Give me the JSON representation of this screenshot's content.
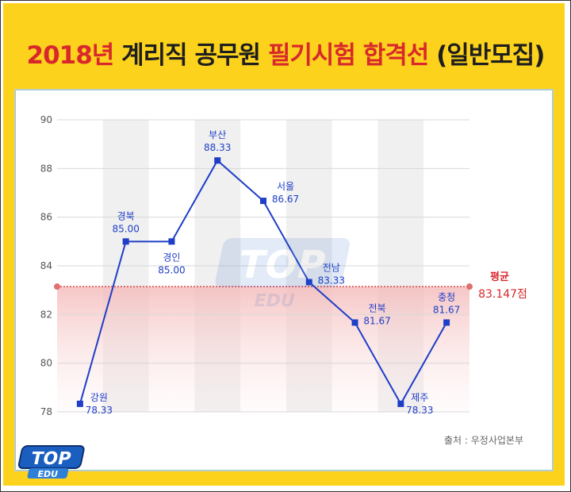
{
  "title": {
    "year": "2018년",
    "mid": "계리직 공무원",
    "highlight": "필기시험 합격선",
    "tail": "(일반모집)"
  },
  "source": "출처 : 우정사업본부",
  "logo": {
    "main": "TOP",
    "sub": "EDU"
  },
  "colors": {
    "background": "#fcd21c",
    "line": "#1e3ec7",
    "average": "#d8282c",
    "title_accent": "#d8282c"
  },
  "chart_data": {
    "type": "line",
    "title": "2018년 계리직 공무원 필기시험 합격선 (일반모집)",
    "xlabel": "",
    "ylabel": "",
    "ylim": [
      78,
      90
    ],
    "yticks": [
      78,
      80,
      82,
      84,
      86,
      88,
      90
    ],
    "grid": true,
    "categories": [
      "강원",
      "경북",
      "경인",
      "부산",
      "서울",
      "전남",
      "전북",
      "제주",
      "충청"
    ],
    "values": [
      78.33,
      85.0,
      85.0,
      88.33,
      86.67,
      83.33,
      81.67,
      78.33,
      81.67
    ],
    "value_labels": [
      "78.33",
      "85.00",
      "85.00",
      "88.33",
      "86.67",
      "83.33",
      "81.67",
      "78.33",
      "81.67"
    ],
    "average": {
      "label": "평균",
      "value": 83.147,
      "value_label": "83.147점"
    }
  }
}
